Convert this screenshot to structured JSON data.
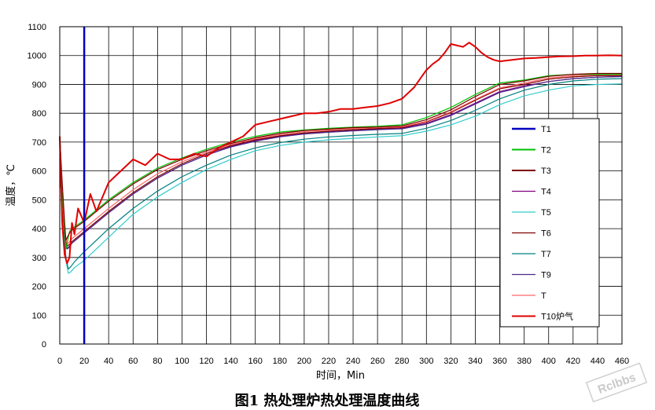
{
  "chart_data": {
    "type": "line",
    "title": "",
    "caption": "图1 热处理炉热处理温度曲线",
    "xlabel": "时间，Min",
    "ylabel": "温度，℃",
    "xlim": [
      0,
      460
    ],
    "ylim": [
      0,
      1100
    ],
    "xticks": [
      0,
      20,
      40,
      60,
      80,
      100,
      120,
      140,
      160,
      180,
      200,
      220,
      240,
      260,
      280,
      300,
      320,
      340,
      360,
      380,
      400,
      420,
      440,
      460
    ],
    "yticks": [
      0,
      100,
      200,
      300,
      400,
      500,
      600,
      700,
      800,
      900,
      1000,
      1100
    ],
    "grid": true,
    "legend_position": "right",
    "watermark": "Rclbbs",
    "series": [
      {
        "name": "T1",
        "color": "#0000c0",
        "x": [
          20,
          20
        ],
        "y": [
          0,
          1100
        ]
      },
      {
        "name": "T2",
        "color": "#00c000",
        "x": [
          0,
          2,
          4,
          5,
          8,
          10,
          20,
          40,
          60,
          80,
          100,
          120,
          140,
          160,
          180,
          200,
          220,
          240,
          260,
          280,
          300,
          320,
          340,
          360,
          380,
          400,
          420,
          440,
          460
        ],
        "y": [
          560,
          520,
          400,
          330,
          390,
          400,
          430,
          500,
          560,
          610,
          645,
          675,
          700,
          720,
          735,
          742,
          748,
          752,
          755,
          760,
          785,
          820,
          865,
          905,
          915,
          930,
          935,
          935,
          935
        ]
      },
      {
        "name": "T3",
        "color": "#7a0000",
        "x": [
          0,
          2,
          4,
          5,
          8,
          10,
          20,
          40,
          60,
          80,
          100,
          120,
          140,
          160,
          180,
          200,
          220,
          240,
          260,
          280,
          300,
          320,
          340,
          360,
          380,
          400,
          420,
          440,
          460
        ],
        "y": [
          720,
          560,
          420,
          360,
          385,
          395,
          425,
          495,
          555,
          605,
          640,
          670,
          695,
          715,
          730,
          740,
          745,
          750,
          752,
          756,
          778,
          812,
          858,
          900,
          912,
          928,
          935,
          938,
          938
        ]
      },
      {
        "name": "T4",
        "color": "#800080",
        "x": [
          0,
          2,
          4,
          6,
          8,
          10,
          20,
          40,
          60,
          80,
          100,
          120,
          140,
          160,
          180,
          200,
          220,
          240,
          260,
          280,
          300,
          320,
          340,
          360,
          380,
          400,
          420,
          440,
          460
        ],
        "y": [
          620,
          500,
          390,
          330,
          335,
          350,
          385,
          455,
          520,
          575,
          620,
          655,
          685,
          705,
          720,
          730,
          737,
          742,
          745,
          748,
          765,
          795,
          835,
          875,
          895,
          910,
          920,
          925,
          928
        ]
      },
      {
        "name": "T5",
        "color": "#33cccc",
        "x": [
          0,
          3,
          5,
          7,
          9,
          12,
          20,
          40,
          60,
          80,
          100,
          120,
          140,
          160,
          180,
          200,
          220,
          240,
          260,
          280,
          300,
          320,
          340,
          360,
          380,
          400,
          420,
          440,
          460
        ],
        "y": [
          600,
          420,
          290,
          245,
          250,
          265,
          290,
          370,
          450,
          510,
          560,
          605,
          640,
          670,
          688,
          700,
          708,
          713,
          718,
          722,
          738,
          760,
          790,
          830,
          860,
          880,
          895,
          900,
          902
        ]
      },
      {
        "name": "T6",
        "color": "#800000",
        "x": [
          0,
          2,
          4,
          6,
          8,
          10,
          20,
          40,
          60,
          80,
          100,
          120,
          140,
          160,
          180,
          200,
          220,
          240,
          260,
          280,
          300,
          320,
          340,
          360,
          380,
          400,
          420,
          440,
          460
        ],
        "y": [
          640,
          480,
          380,
          340,
          345,
          355,
          390,
          460,
          525,
          580,
          625,
          660,
          688,
          708,
          722,
          732,
          738,
          743,
          747,
          750,
          770,
          802,
          845,
          885,
          900,
          918,
          926,
          930,
          930
        ]
      },
      {
        "name": "T7",
        "color": "#008080",
        "x": [
          0,
          3,
          5,
          7,
          9,
          12,
          20,
          40,
          60,
          80,
          100,
          120,
          140,
          160,
          180,
          200,
          220,
          240,
          260,
          280,
          300,
          320,
          340,
          360,
          380,
          400,
          420,
          440,
          460
        ],
        "y": [
          610,
          430,
          300,
          260,
          268,
          285,
          320,
          400,
          470,
          530,
          580,
          620,
          655,
          680,
          698,
          710,
          718,
          723,
          727,
          730,
          748,
          775,
          810,
          850,
          880,
          900,
          912,
          918,
          920
        ]
      },
      {
        "name": "T9",
        "color": "#4b2c8c",
        "x": [
          0,
          2,
          4,
          6,
          8,
          10,
          20,
          40,
          60,
          80,
          100,
          120,
          140,
          160,
          180,
          200,
          220,
          240,
          260,
          280,
          300,
          320,
          340,
          360,
          380,
          400,
          420,
          440,
          460
        ],
        "y": [
          630,
          490,
          375,
          330,
          340,
          350,
          385,
          455,
          520,
          575,
          620,
          655,
          683,
          703,
          718,
          728,
          734,
          739,
          743,
          746,
          762,
          792,
          832,
          872,
          892,
          910,
          920,
          925,
          927
        ]
      },
      {
        "name": "T",
        "color": "#ff6666",
        "x": [
          0,
          2,
          4,
          6,
          8,
          10,
          20,
          40,
          60,
          80,
          100,
          120,
          140,
          160,
          180,
          200,
          220,
          240,
          260,
          280,
          300,
          320,
          340,
          360,
          380,
          400,
          420,
          440,
          460
        ],
        "y": [
          650,
          500,
          390,
          345,
          355,
          365,
          400,
          470,
          535,
          590,
          632,
          665,
          692,
          712,
          726,
          736,
          742,
          747,
          750,
          753,
          772,
          805,
          848,
          888,
          905,
          922,
          930,
          934,
          934
        ]
      },
      {
        "name": "T10炉气",
        "color": "#e00000",
        "x": [
          0,
          2,
          4,
          6,
          8,
          10,
          12,
          15,
          20,
          25,
          30,
          40,
          50,
          60,
          70,
          80,
          90,
          100,
          110,
          120,
          130,
          140,
          150,
          160,
          170,
          180,
          190,
          200,
          210,
          220,
          230,
          240,
          250,
          260,
          270,
          280,
          290,
          295,
          300,
          305,
          310,
          315,
          320,
          325,
          330,
          335,
          340,
          345,
          350,
          355,
          360,
          370,
          380,
          390,
          400,
          410,
          420,
          430,
          440,
          450,
          460
        ],
        "y": [
          720,
          420,
          310,
          280,
          300,
          420,
          380,
          470,
          420,
          520,
          460,
          560,
          600,
          640,
          620,
          660,
          640,
          640,
          660,
          650,
          680,
          700,
          720,
          760,
          770,
          780,
          790,
          800,
          800,
          805,
          815,
          815,
          820,
          825,
          835,
          850,
          890,
          920,
          950,
          970,
          985,
          1010,
          1040,
          1035,
          1030,
          1045,
          1030,
          1010,
          995,
          985,
          980,
          985,
          990,
          992,
          995,
          997,
          998,
          1000,
          1000,
          1001,
          1000
        ]
      }
    ]
  }
}
